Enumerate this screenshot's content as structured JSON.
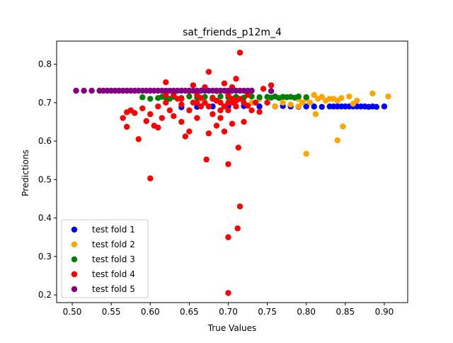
{
  "chart_data": {
    "type": "scatter",
    "title": "sat_friends_p12m_4",
    "xlabel": "True Values",
    "ylabel": "Predictions",
    "xlim": [
      0.48,
      0.93
    ],
    "ylim": [
      0.18,
      0.86
    ],
    "xticks": [
      "0.50",
      "0.55",
      "0.60",
      "0.65",
      "0.70",
      "0.75",
      "0.80",
      "0.85",
      "0.90"
    ],
    "yticks": [
      "0.2",
      "0.3",
      "0.4",
      "0.5",
      "0.6",
      "0.7",
      "0.8"
    ],
    "grid": false,
    "legend_position": "lower-left",
    "series": [
      {
        "name": "test fold 1",
        "color": "#0000ff",
        "points": [
          [
            0.64,
            0.688
          ],
          [
            0.66,
            0.689
          ],
          [
            0.68,
            0.69
          ],
          [
            0.7,
            0.69
          ],
          [
            0.72,
            0.691
          ],
          [
            0.74,
            0.69
          ],
          [
            0.76,
            0.69
          ],
          [
            0.77,
            0.691
          ],
          [
            0.78,
            0.69
          ],
          [
            0.79,
            0.689
          ],
          [
            0.8,
            0.69
          ],
          [
            0.81,
            0.69
          ],
          [
            0.82,
            0.689
          ],
          [
            0.83,
            0.69
          ],
          [
            0.835,
            0.69
          ],
          [
            0.84,
            0.69
          ],
          [
            0.845,
            0.69
          ],
          [
            0.85,
            0.69
          ],
          [
            0.855,
            0.69
          ],
          [
            0.86,
            0.69
          ],
          [
            0.865,
            0.69
          ],
          [
            0.87,
            0.69
          ],
          [
            0.875,
            0.69
          ],
          [
            0.88,
            0.689
          ],
          [
            0.885,
            0.69
          ],
          [
            0.89,
            0.689
          ],
          [
            0.9,
            0.69
          ]
        ]
      },
      {
        "name": "test fold 2",
        "color": "#ffa500",
        "points": [
          [
            0.73,
            0.7
          ],
          [
            0.74,
            0.71
          ],
          [
            0.75,
            0.7
          ],
          [
            0.76,
            0.69
          ],
          [
            0.77,
            0.7
          ],
          [
            0.78,
            0.695
          ],
          [
            0.79,
            0.71
          ],
          [
            0.79,
            0.69
          ],
          [
            0.795,
            0.7
          ],
          [
            0.8,
            0.71
          ],
          [
            0.805,
            0.7
          ],
          [
            0.81,
            0.72
          ],
          [
            0.815,
            0.71
          ],
          [
            0.82,
            0.715
          ],
          [
            0.825,
            0.705
          ],
          [
            0.83,
            0.71
          ],
          [
            0.835,
            0.71
          ],
          [
            0.84,
            0.705
          ],
          [
            0.845,
            0.712
          ],
          [
            0.855,
            0.716
          ],
          [
            0.86,
            0.697
          ],
          [
            0.865,
            0.705
          ],
          [
            0.885,
            0.724
          ],
          [
            0.905,
            0.716
          ],
          [
            0.812,
            0.67
          ],
          [
            0.8,
            0.567
          ],
          [
            0.84,
            0.602
          ],
          [
            0.847,
            0.638
          ]
        ]
      },
      {
        "name": "test fold 3",
        "color": "#008000",
        "points": [
          [
            0.59,
            0.714
          ],
          [
            0.6,
            0.71
          ],
          [
            0.61,
            0.712
          ],
          [
            0.615,
            0.715
          ],
          [
            0.62,
            0.713
          ],
          [
            0.625,
            0.71
          ],
          [
            0.63,
            0.715
          ],
          [
            0.64,
            0.712
          ],
          [
            0.65,
            0.716
          ],
          [
            0.66,
            0.713
          ],
          [
            0.67,
            0.715
          ],
          [
            0.68,
            0.713
          ],
          [
            0.69,
            0.716
          ],
          [
            0.7,
            0.714
          ],
          [
            0.71,
            0.715
          ],
          [
            0.72,
            0.713
          ],
          [
            0.73,
            0.716
          ],
          [
            0.74,
            0.714
          ],
          [
            0.75,
            0.715
          ],
          [
            0.755,
            0.713
          ],
          [
            0.76,
            0.716
          ],
          [
            0.765,
            0.712
          ],
          [
            0.77,
            0.715
          ],
          [
            0.775,
            0.714
          ],
          [
            0.78,
            0.715
          ],
          [
            0.785,
            0.713
          ],
          [
            0.79,
            0.716
          ],
          [
            0.8,
            0.714
          ]
        ]
      },
      {
        "name": "test fold 4",
        "color": "#ff0000",
        "points": [
          [
            0.565,
            0.66
          ],
          [
            0.57,
            0.675
          ],
          [
            0.575,
            0.68
          ],
          [
            0.58,
            0.673
          ],
          [
            0.585,
            0.605
          ],
          [
            0.57,
            0.637
          ],
          [
            0.59,
            0.685
          ],
          [
            0.595,
            0.652
          ],
          [
            0.6,
            0.67
          ],
          [
            0.605,
            0.64
          ],
          [
            0.61,
            0.69
          ],
          [
            0.615,
            0.66
          ],
          [
            0.62,
            0.7
          ],
          [
            0.62,
            0.753
          ],
          [
            0.625,
            0.68
          ],
          [
            0.63,
            0.665
          ],
          [
            0.635,
            0.71
          ],
          [
            0.64,
            0.695
          ],
          [
            0.64,
            0.65
          ],
          [
            0.645,
            0.612
          ],
          [
            0.65,
            0.73
          ],
          [
            0.65,
            0.625
          ],
          [
            0.655,
            0.7
          ],
          [
            0.66,
            0.72
          ],
          [
            0.66,
            0.66
          ],
          [
            0.665,
            0.69
          ],
          [
            0.67,
            0.7
          ],
          [
            0.67,
            0.74
          ],
          [
            0.672,
            0.552
          ],
          [
            0.675,
            0.62
          ],
          [
            0.675,
            0.78
          ],
          [
            0.68,
            0.71
          ],
          [
            0.68,
            0.67
          ],
          [
            0.685,
            0.64
          ],
          [
            0.685,
            0.73
          ],
          [
            0.69,
            0.7
          ],
          [
            0.69,
            0.66
          ],
          [
            0.695,
            0.75
          ],
          [
            0.695,
            0.625
          ],
          [
            0.7,
            0.72
          ],
          [
            0.7,
            0.68
          ],
          [
            0.7,
            0.35
          ],
          [
            0.7,
            0.54
          ],
          [
            0.7,
            0.205
          ],
          [
            0.705,
            0.7
          ],
          [
            0.705,
            0.74
          ],
          [
            0.705,
            0.645
          ],
          [
            0.71,
            0.705
          ],
          [
            0.71,
            0.762
          ],
          [
            0.71,
            0.69
          ],
          [
            0.712,
            0.373
          ],
          [
            0.713,
            0.583
          ],
          [
            0.715,
            0.83
          ],
          [
            0.715,
            0.43
          ],
          [
            0.72,
            0.7
          ],
          [
            0.72,
            0.65
          ],
          [
            0.725,
            0.72
          ],
          [
            0.73,
            0.68
          ],
          [
            0.735,
            0.7
          ],
          [
            0.74,
            0.676
          ],
          [
            0.745,
            0.736
          ],
          [
            0.75,
            0.7
          ],
          [
            0.755,
            0.745
          ],
          [
            0.6,
            0.503
          ],
          [
            0.61,
            0.635
          ],
          [
            0.63,
            0.72
          ],
          [
            0.65,
            0.68
          ],
          [
            0.66,
            0.7
          ],
          [
            0.675,
            0.69
          ],
          [
            0.69,
            0.68
          ],
          [
            0.7,
            0.7
          ],
          [
            0.715,
            0.71
          ],
          [
            0.725,
            0.692
          ],
          [
            0.64,
            0.71
          ],
          [
            0.62,
            0.72
          ],
          [
            0.655,
            0.745
          ],
          [
            0.665,
            0.712
          ],
          [
            0.685,
            0.705
          ],
          [
            0.695,
            0.69
          ],
          [
            0.705,
            0.71
          ]
        ]
      },
      {
        "name": "test fold 5",
        "color": "#800080",
        "points": [
          [
            0.505,
            0.731
          ],
          [
            0.515,
            0.731
          ],
          [
            0.525,
            0.731
          ],
          [
            0.535,
            0.731
          ],
          [
            0.54,
            0.731
          ],
          [
            0.545,
            0.731
          ],
          [
            0.55,
            0.731
          ],
          [
            0.555,
            0.731
          ],
          [
            0.56,
            0.731
          ],
          [
            0.565,
            0.731
          ],
          [
            0.57,
            0.731
          ],
          [
            0.575,
            0.731
          ],
          [
            0.58,
            0.731
          ],
          [
            0.585,
            0.731
          ],
          [
            0.59,
            0.731
          ],
          [
            0.595,
            0.731
          ],
          [
            0.6,
            0.731
          ],
          [
            0.605,
            0.731
          ],
          [
            0.61,
            0.731
          ],
          [
            0.615,
            0.731
          ],
          [
            0.62,
            0.731
          ],
          [
            0.625,
            0.731
          ],
          [
            0.63,
            0.731
          ],
          [
            0.635,
            0.731
          ],
          [
            0.64,
            0.731
          ],
          [
            0.645,
            0.731
          ],
          [
            0.65,
            0.731
          ],
          [
            0.655,
            0.731
          ],
          [
            0.66,
            0.731
          ],
          [
            0.665,
            0.731
          ],
          [
            0.67,
            0.731
          ],
          [
            0.675,
            0.731
          ],
          [
            0.68,
            0.731
          ],
          [
            0.685,
            0.731
          ],
          [
            0.69,
            0.731
          ],
          [
            0.695,
            0.731
          ],
          [
            0.7,
            0.731
          ],
          [
            0.705,
            0.731
          ],
          [
            0.71,
            0.731
          ],
          [
            0.715,
            0.731
          ],
          [
            0.72,
            0.731
          ],
          [
            0.725,
            0.731
          ],
          [
            0.73,
            0.731
          ],
          [
            0.755,
            0.73
          ]
        ]
      }
    ]
  }
}
